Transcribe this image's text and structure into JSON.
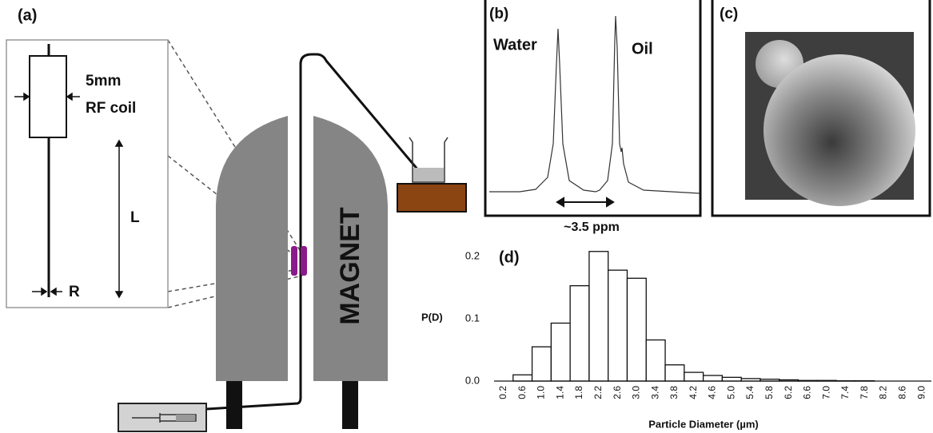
{
  "panel_a": {
    "label": "(a)",
    "coil_size": "5mm",
    "coil_name": "RF coil",
    "length_label": "L",
    "radius_label": "R",
    "magnet_label": "MAGNET"
  },
  "panel_b": {
    "label": "(b)",
    "peak_left": "Water",
    "peak_right": "Oil",
    "shift_label": "~3.5 ppm"
  },
  "panel_c": {
    "label": "(c)"
  },
  "chart_data": {
    "type": "bar",
    "panel_label": "(d)",
    "ylabel": "P(D)",
    "xlabel": "Particle Diameter (µm)",
    "categories": [
      "0.2",
      "0.6",
      "1.0",
      "1.4",
      "1.8",
      "2.2",
      "2.6",
      "3.0",
      "3.4",
      "3.8",
      "4.2",
      "4.6",
      "5.0",
      "5.4",
      "5.8",
      "6.2",
      "6.6",
      "7.0",
      "7.4",
      "7.8",
      "8.2",
      "8.6",
      "9.0"
    ],
    "values": [
      0,
      0.01,
      0.055,
      0.093,
      0.153,
      0.208,
      0.178,
      0.165,
      0.066,
      0.026,
      0.014,
      0.009,
      0.006,
      0.004,
      0.003,
      0.002,
      0.001,
      0.001,
      0.0005,
      0.0005,
      0,
      0,
      0
    ],
    "color": "#ffffff",
    "ylim": [
      0,
      0.22
    ],
    "yticks": [
      {
        "value": 0,
        "label": "0.0"
      },
      0.1,
      0.2
    ]
  }
}
